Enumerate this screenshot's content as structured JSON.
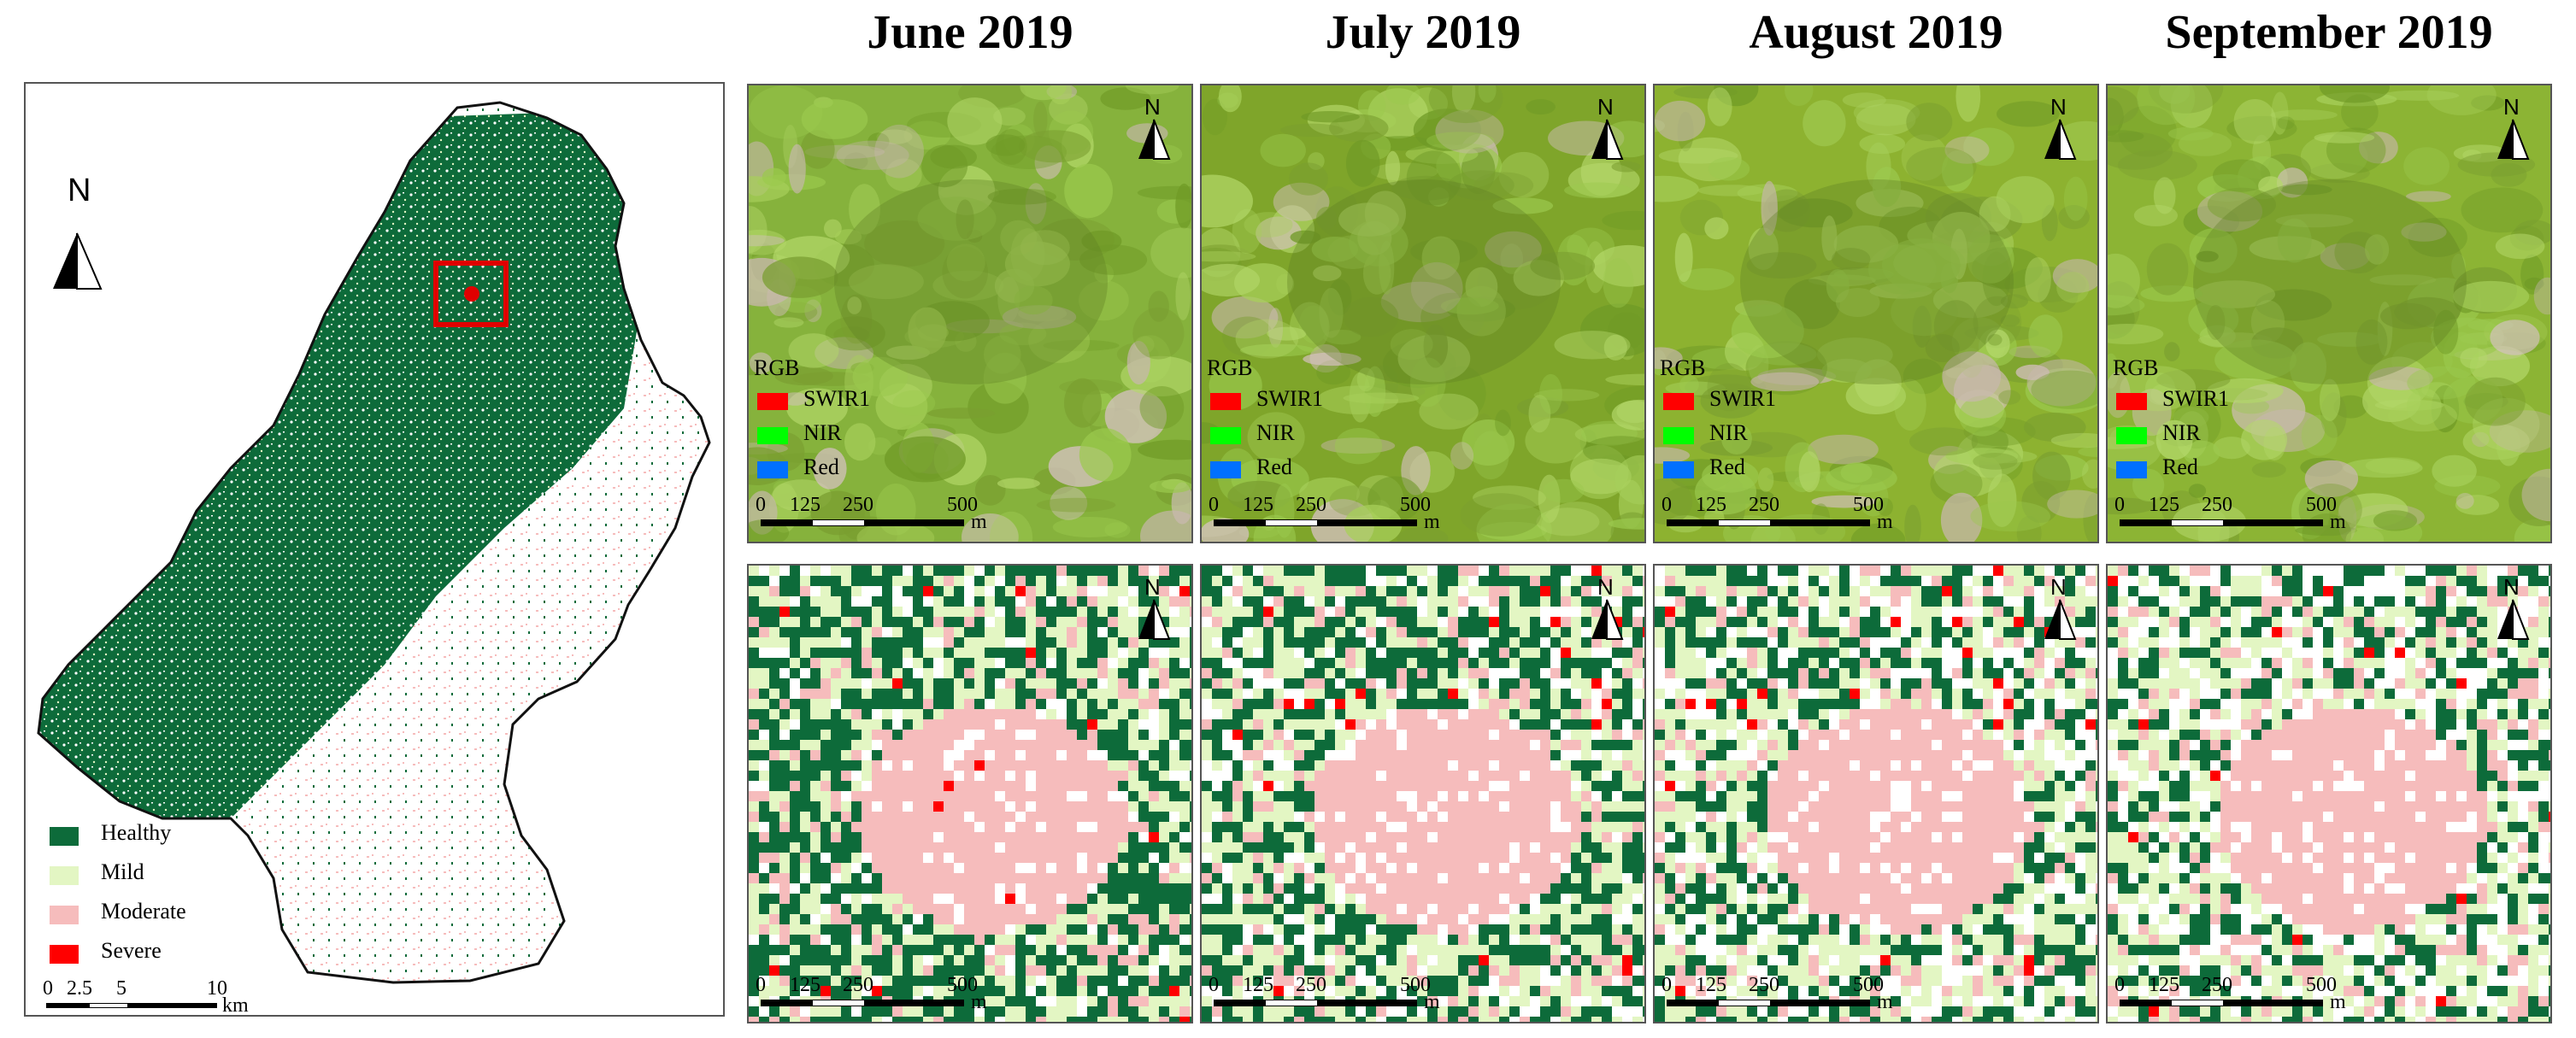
{
  "months": [
    "June 2019",
    "July 2019",
    "August 2019",
    "September 2019"
  ],
  "north_label": "N",
  "overview": {
    "legend": [
      {
        "label": "Healthy",
        "color": "#0d6b3a"
      },
      {
        "label": "Mild",
        "color": "#e3f6c3"
      },
      {
        "label": "Moderate",
        "color": "#f6bcbc"
      },
      {
        "label": "Severe",
        "color": "#ff0000"
      }
    ],
    "scale": {
      "ticks": [
        "0",
        "2.5",
        "5",
        "10"
      ],
      "unit": "km"
    }
  },
  "rgb_legend": {
    "title": "RGB",
    "bands": [
      {
        "label": "SWIR1",
        "color": "#ff0000"
      },
      {
        "label": "NIR",
        "color": "#00ff00"
      },
      {
        "label": "Red",
        "color": "#0070ff"
      }
    ]
  },
  "panel_scale": {
    "ticks": [
      "0",
      "125",
      "250",
      "500"
    ],
    "unit": "m"
  },
  "colors": {
    "healthy": "#0d6b3a",
    "mild": "#e3f6c3",
    "moderate": "#f6bcbc",
    "severe": "#ff0000",
    "inset_box": "#e00000"
  }
}
